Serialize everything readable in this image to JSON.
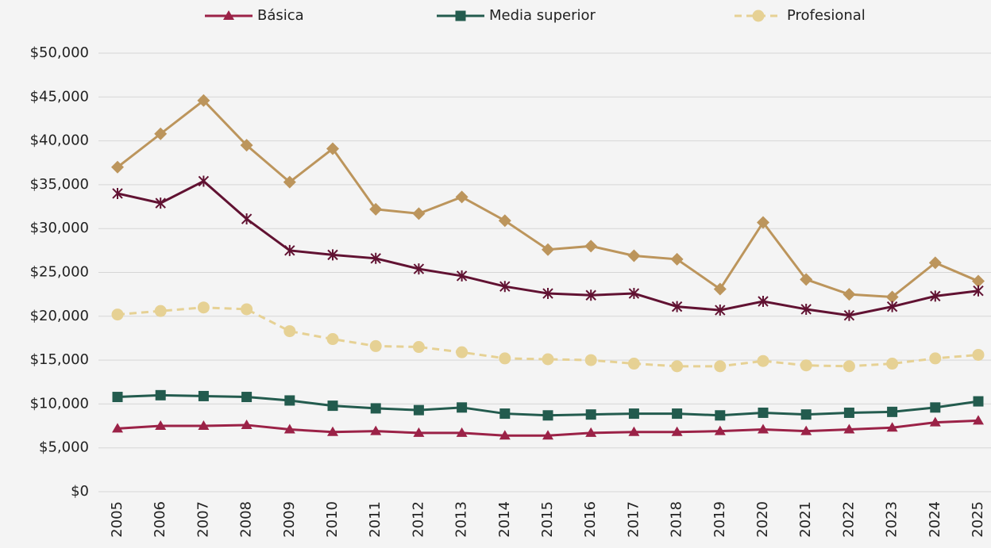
{
  "chart_data": {
    "type": "line",
    "categories": [
      "2005",
      "2006",
      "2007",
      "2008",
      "2009",
      "2010",
      "2011",
      "2012",
      "2013",
      "2014",
      "2015",
      "2016",
      "2017",
      "2018",
      "2019",
      "2020",
      "2021",
      "2022",
      "2023",
      "2024",
      "2025"
    ],
    "series": [
      {
        "name": "Básica",
        "color": "#9b2247",
        "marker": "triangle",
        "dashed": false,
        "values": [
          7200,
          7500,
          7500,
          7600,
          7100,
          6800,
          6900,
          6700,
          6700,
          6400,
          6400,
          6700,
          6800,
          6800,
          6900,
          7100,
          6900,
          7100,
          7300,
          7900,
          8100
        ]
      },
      {
        "name": "Media superior",
        "color": "#235b4e",
        "marker": "square",
        "dashed": false,
        "values": [
          10800,
          11000,
          10900,
          10800,
          10400,
          9800,
          9500,
          9300,
          9600,
          8900,
          8700,
          8800,
          8900,
          8900,
          8700,
          9000,
          8800,
          9000,
          9100,
          9600,
          10300
        ]
      },
      {
        "name": "Profesional",
        "color": "#e6d194",
        "marker": "circle",
        "dashed": true,
        "values": [
          20200,
          20600,
          21000,
          20800,
          18300,
          17400,
          16600,
          16500,
          15900,
          15200,
          15100,
          15000,
          14600,
          14300,
          14300,
          14900,
          14400,
          14300,
          14600,
          15200,
          15600
        ]
      },
      {
        "color": "#bc955c",
        "marker": "diamond",
        "dashed": false,
        "values": [
          37000,
          40800,
          44600,
          39500,
          35300,
          39100,
          32200,
          31700,
          33600,
          30900,
          27600,
          28000,
          26900,
          26500,
          23100,
          30700,
          24200,
          22500,
          22200,
          26100,
          24000
        ]
      },
      {
        "color": "#611232",
        "marker": "star",
        "dashed": false,
        "values": [
          34000,
          32900,
          35400,
          31100,
          27500,
          27000,
          26600,
          25400,
          24600,
          23400,
          22600,
          22400,
          22600,
          21100,
          20700,
          21700,
          20800,
          20100,
          21100,
          22300,
          22900
        ]
      }
    ],
    "ylim": [
      0,
      50000
    ],
    "yticks": [
      {
        "value": 0,
        "label": "$0"
      },
      {
        "value": 5000,
        "label": "$5,000"
      },
      {
        "value": 10000,
        "label": "$10,000"
      },
      {
        "value": 15000,
        "label": "$15,000"
      },
      {
        "value": 20000,
        "label": "$20,000"
      },
      {
        "value": 25000,
        "label": "$25,000"
      },
      {
        "value": 30000,
        "label": "$30,000"
      },
      {
        "value": 35000,
        "label": "$35,000"
      },
      {
        "value": 40000,
        "label": "$40,000"
      },
      {
        "value": 45000,
        "label": "$45,000"
      },
      {
        "value": 50000,
        "label": "$50,000"
      }
    ],
    "grid": true,
    "legend": "top"
  }
}
